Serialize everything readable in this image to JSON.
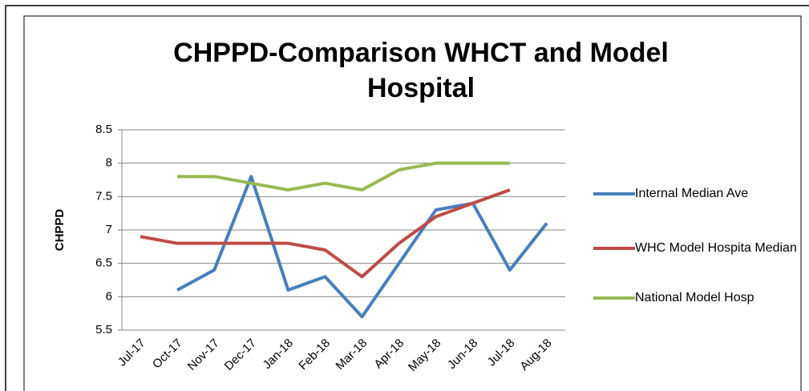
{
  "chart_data": {
    "type": "line",
    "title": "CHPPD-Comparison WHCT and Model Hospital",
    "ylabel": "CHPPD",
    "categories": [
      "Jul-17",
      "Oct-17",
      "Nov-17",
      "Dec-17",
      "Jan-18",
      "Feb-18",
      "Mar-18",
      "Apr-18",
      "May-18",
      "Jun-18",
      "Jul-18",
      "Aug-18"
    ],
    "series": [
      {
        "name": "Internal Median Ave",
        "color": "#4a7ebb",
        "values": [
          null,
          6.1,
          6.4,
          7.8,
          6.1,
          6.3,
          5.7,
          6.5,
          7.3,
          7.4,
          6.4,
          7.1
        ]
      },
      {
        "name": "WHC Model Hospita Median",
        "color": "#be4b48",
        "values": [
          6.9,
          6.8,
          6.8,
          6.8,
          6.8,
          6.7,
          6.3,
          6.8,
          7.2,
          7.4,
          7.6,
          null
        ]
      },
      {
        "name": "National Model Hosp",
        "color": "#98b954",
        "values": [
          null,
          7.8,
          7.8,
          7.7,
          7.6,
          7.7,
          7.6,
          7.9,
          8.0,
          8.0,
          8.0,
          null
        ]
      }
    ],
    "ylim": [
      5.5,
      8.5
    ],
    "yticks": [
      5.5,
      6,
      6.5,
      7,
      7.5,
      8,
      8.5
    ],
    "grid": true,
    "legend": "right"
  }
}
